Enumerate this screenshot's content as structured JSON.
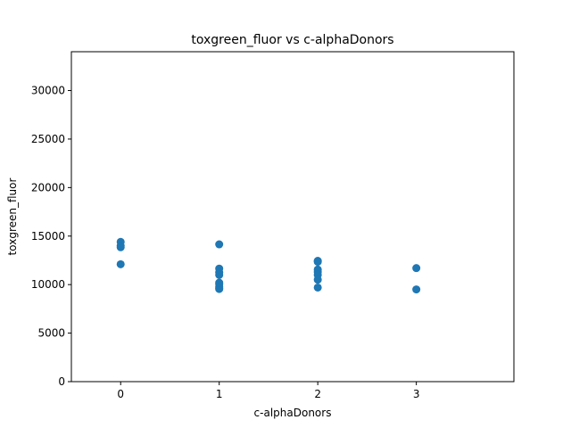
{
  "chart_data": {
    "type": "scatter",
    "title": "toxgreen_fluor vs c-alphaDonors",
    "xlabel": "c-alphaDonors",
    "ylabel": "toxgreen_fluor",
    "xlim": [
      -0.5,
      3.99
    ],
    "ylim": [
      0,
      34000
    ],
    "xticks": [
      0,
      1,
      2,
      3
    ],
    "yticks": [
      0,
      5000,
      10000,
      15000,
      20000,
      25000,
      30000
    ],
    "grid": false,
    "color": "#1f77b4",
    "series": [
      {
        "x": [
          0,
          0,
          0,
          0,
          1,
          1,
          1,
          1,
          1,
          1,
          1,
          1,
          1,
          2,
          2,
          2,
          2,
          2,
          2,
          2,
          3,
          3
        ],
        "y": [
          14400,
          14000,
          13850,
          12100,
          14150,
          11650,
          11250,
          11000,
          10050,
          9800,
          9650,
          9550,
          10200,
          12450,
          11550,
          11300,
          11000,
          10500,
          9700,
          12350,
          11700,
          9500
        ]
      }
    ]
  }
}
